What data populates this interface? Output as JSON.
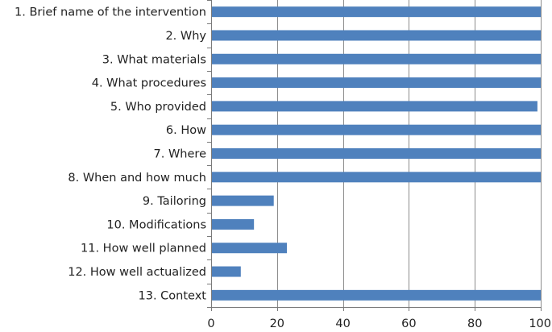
{
  "chart_data": {
    "type": "bar",
    "orientation": "horizontal",
    "categories": [
      "1. Brief name of the intervention",
      "2. Why",
      "3. What materials",
      "4. What procedures",
      "5. Who provided",
      "6. How",
      "7. Where",
      "8. When and how much",
      "9. Tailoring",
      "10. Modifications",
      "11. How well planned",
      "12. How well actualized",
      "13. Context"
    ],
    "values": [
      100,
      100,
      100,
      100,
      99,
      100,
      100,
      100,
      19,
      13,
      23,
      9,
      100
    ],
    "xlim": [
      0,
      100
    ],
    "xticks": [
      0,
      20,
      40,
      60,
      80,
      100
    ],
    "grid": "vertical",
    "legend": "none",
    "bar_color": "#4f81bd"
  }
}
